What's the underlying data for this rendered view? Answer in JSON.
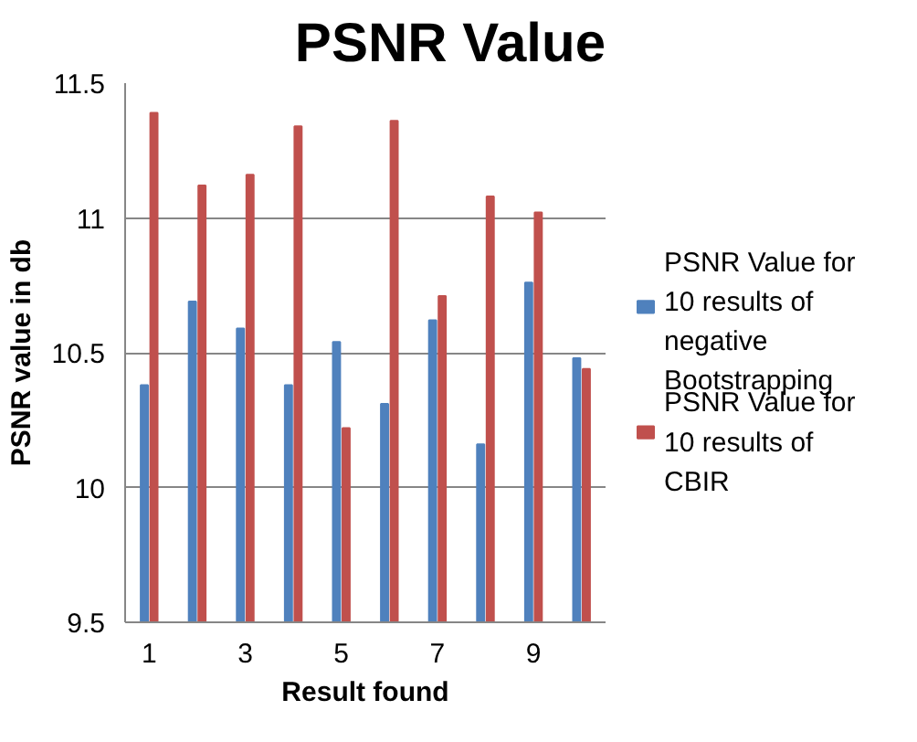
{
  "chart_data": {
    "type": "bar",
    "title": "PSNR Value",
    "xlabel": "Result found",
    "ylabel": "PSNR value in db",
    "categories": [
      "1",
      null,
      "3",
      null,
      "5",
      null,
      "7",
      null,
      "9",
      null
    ],
    "series": [
      {
        "name": "PSNR Value for 10 results of negative Bootstrapping",
        "color": "#4f81bd",
        "values": [
          10.38,
          10.69,
          10.59,
          10.38,
          10.54,
          10.31,
          10.62,
          10.16,
          10.76,
          10.48
        ]
      },
      {
        "name": "PSNR Value for 10 results of CBIR",
        "color": "#c0504d",
        "values": [
          11.39,
          11.12,
          11.16,
          11.34,
          10.22,
          11.36,
          10.71,
          11.08,
          11.02,
          10.44
        ]
      }
    ],
    "ylim": [
      9.5,
      11.5
    ],
    "yticks": [
      9.5,
      10,
      10.5,
      11,
      11.5
    ],
    "grid": "y",
    "legend": "right"
  }
}
